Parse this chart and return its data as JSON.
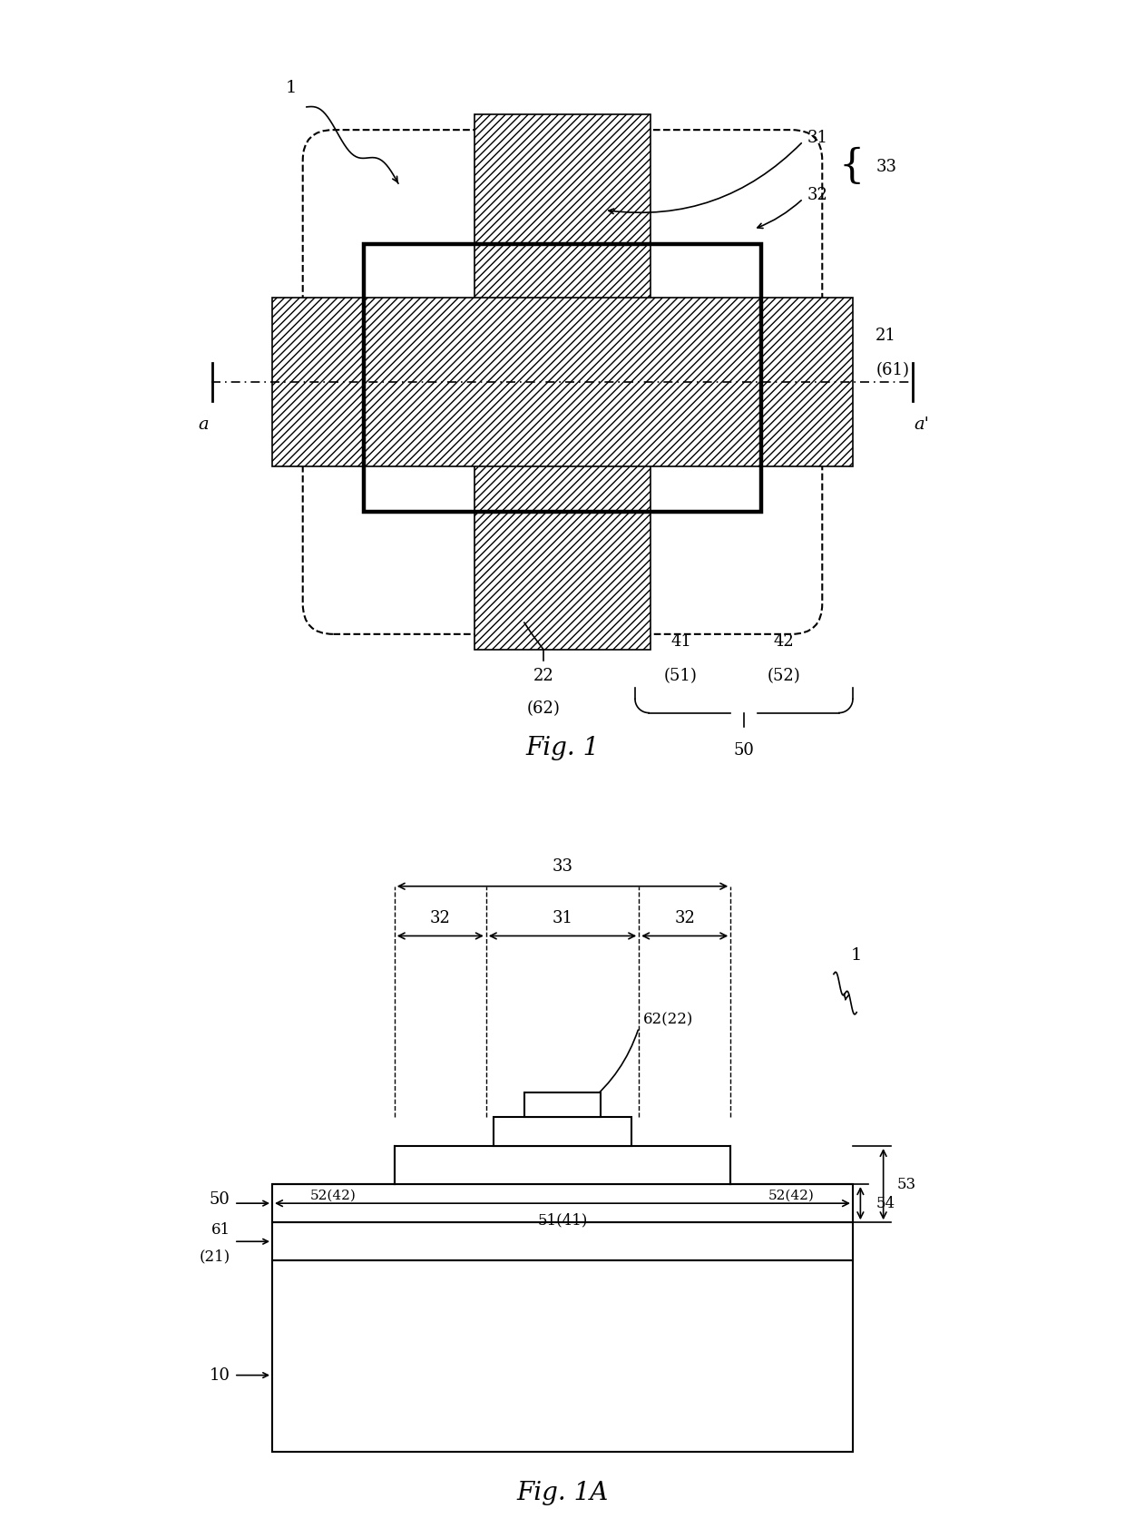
{
  "fig_width": 12.4,
  "fig_height": 16.84,
  "bg_color": "#ffffff",
  "fig1_title": "Fig. 1",
  "fig1a_title": "Fig. 1A"
}
